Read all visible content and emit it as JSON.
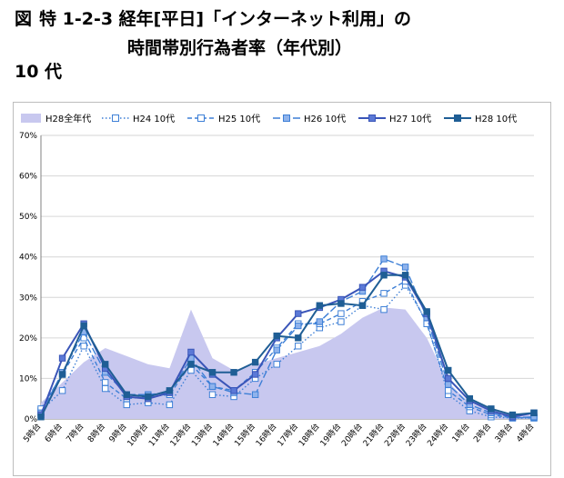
{
  "header": {
    "fig_label": "図",
    "title_line1": "特 1-2-3 経年[平日]「インターネット利用」の",
    "title_line2": "時間帯別行為者率（年代別）",
    "subtitle": "10 代"
  },
  "chart_data": {
    "type": "line",
    "categories": [
      "5時台",
      "6時台",
      "7時台",
      "8時台",
      "9時台",
      "10時台",
      "11時台",
      "12時台",
      "13時台",
      "14時台",
      "15時台",
      "16時台",
      "17時台",
      "18時台",
      "19時台",
      "20時台",
      "21時台",
      "22時台",
      "23時台",
      "24時台",
      "1時台",
      "2時台",
      "3時台",
      "4時台"
    ],
    "ylim": [
      0,
      70
    ],
    "yticks": [
      "0%",
      "10%",
      "20%",
      "30%",
      "40%",
      "50%",
      "60%",
      "70%"
    ],
    "ytick_values": [
      0,
      10,
      20,
      30,
      40,
      50,
      60,
      70
    ],
    "grid": true,
    "legend_position": "top",
    "area": {
      "name": "H28全年代",
      "color": "#c8c8ef",
      "values": [
        4,
        9,
        14,
        17.5,
        15.5,
        13.5,
        12.5,
        27,
        15,
        12,
        13.5,
        15,
        16.5,
        18,
        21,
        25,
        27.5,
        27,
        20,
        9,
        4,
        2,
        1,
        1
      ]
    },
    "series": [
      {
        "name": "H24 10代",
        "color": "#3d7fd6",
        "dash": "1.5,2.5",
        "marker": "hollow",
        "values": [
          2,
          7,
          18,
          7.5,
          3.5,
          4,
          3.5,
          12,
          6,
          5.5,
          10,
          13.5,
          18,
          22.5,
          24,
          28,
          27,
          33,
          24,
          6,
          2,
          0.5,
          0.2,
          0.2
        ]
      },
      {
        "name": "H25 10代",
        "color": "#3d7fd6",
        "dash": "5,3",
        "marker": "hollow",
        "values": [
          2.5,
          11,
          20,
          9,
          5,
          5.5,
          6,
          13.5,
          8,
          7,
          11.5,
          17.5,
          23.5,
          23.5,
          26,
          29,
          31,
          34,
          23.5,
          7,
          3,
          1,
          0.3,
          0.3
        ]
      },
      {
        "name": "H26 10代",
        "color": "#3d7fd6",
        "dash": "8,3",
        "marker": "filled-light",
        "values": [
          1.5,
          11.5,
          21.5,
          11.5,
          6,
          6,
          6.5,
          15,
          8,
          6.5,
          6,
          17,
          23,
          24,
          29,
          31.5,
          39.5,
          37.5,
          25,
          8.5,
          3.5,
          1.5,
          0.3,
          0.5
        ]
      },
      {
        "name": "H27 10代",
        "color": "#3a55b8",
        "dash": "",
        "marker": "filled-dark",
        "values": [
          1,
          15,
          23.5,
          12.5,
          5.5,
          5,
          6.5,
          16.5,
          11,
          7,
          11,
          20,
          26,
          27.5,
          29.5,
          32.5,
          36.5,
          35,
          26,
          10,
          4.5,
          2,
          0.5,
          1.5
        ]
      },
      {
        "name": "H28 10代",
        "color": "#1f5e95",
        "dash": "",
        "marker": "filled-dark",
        "values": [
          0.5,
          11,
          23,
          13.5,
          6,
          5.5,
          7,
          13.5,
          11.5,
          11.5,
          14,
          20.5,
          20,
          28,
          28.5,
          28,
          35.5,
          35.5,
          26.5,
          12,
          5,
          2.5,
          1,
          1.5
        ]
      }
    ]
  }
}
